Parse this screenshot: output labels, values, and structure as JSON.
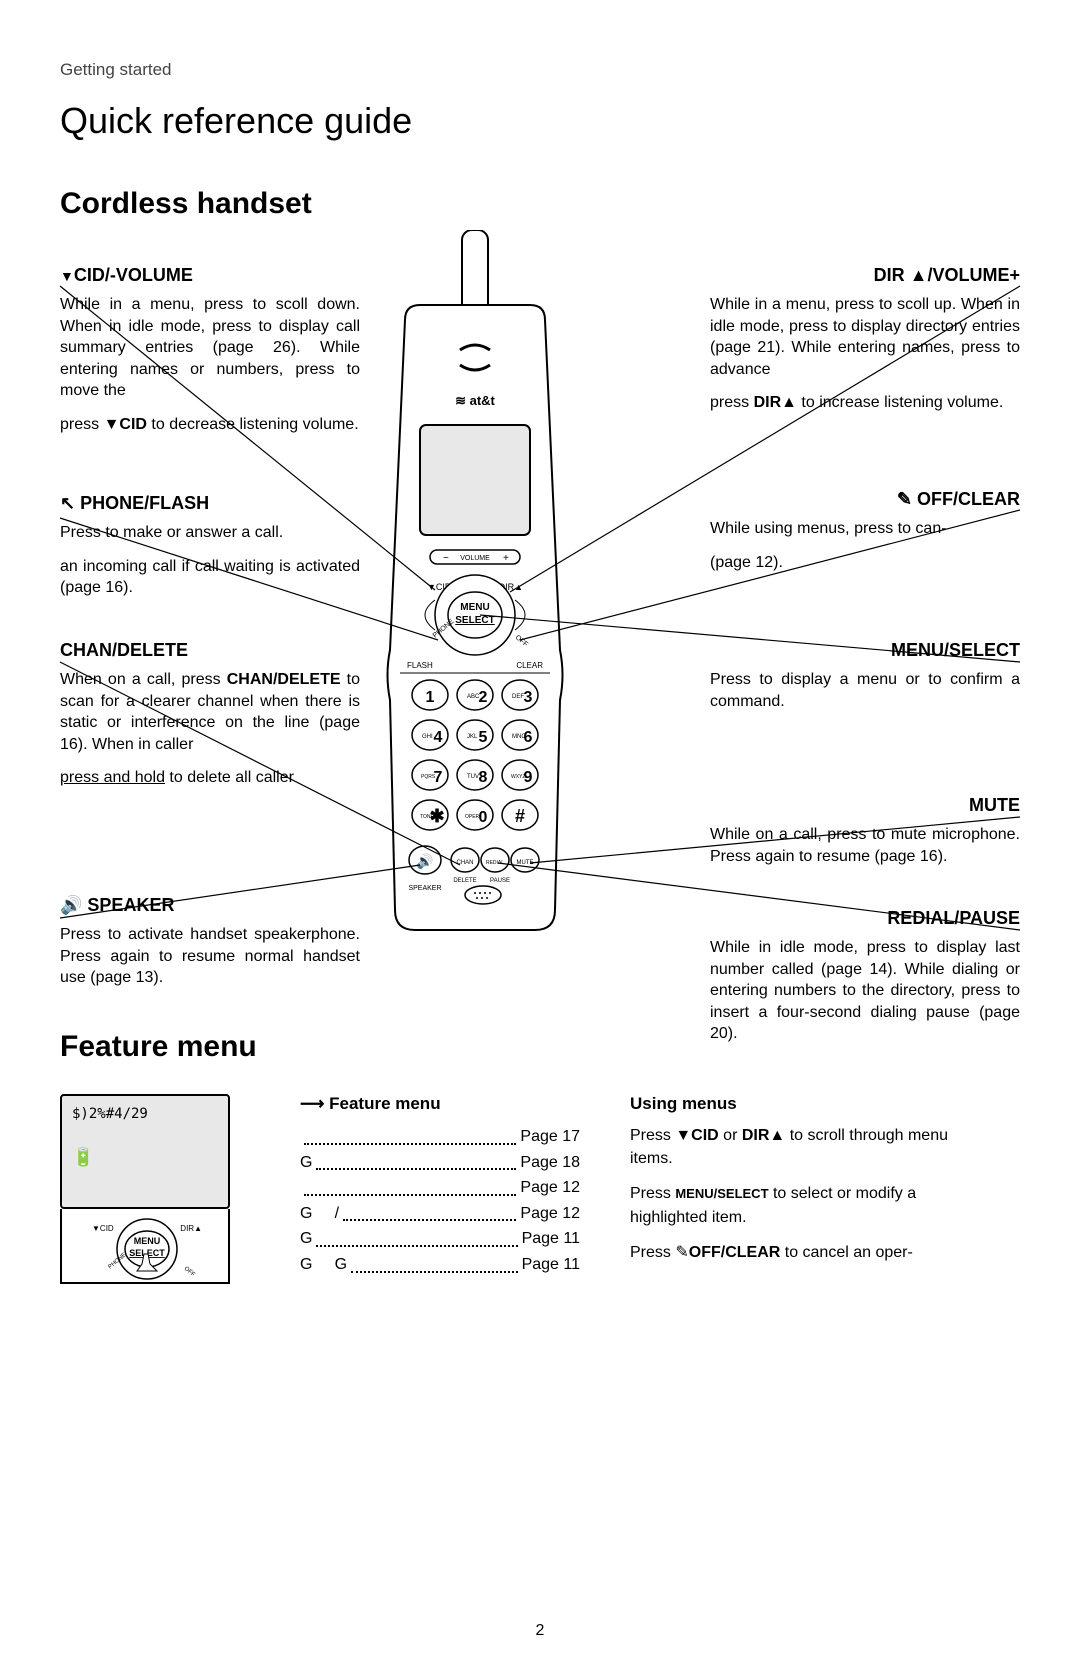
{
  "header": {
    "section_label": "Getting started",
    "page_title": "Quick reference guide",
    "handset_heading": "Cordless handset"
  },
  "left_callouts": {
    "cid": {
      "title_prefix": "▼",
      "title": "CID/-VOLUME",
      "body1": "While in a menu, press to scoll down. When in idle mode, press to display call summary entries (page 26). While entering names or numbers, press to move the",
      "body2_prefix": "press ",
      "body2_strong": "▼CID",
      "body2_suffix": " to decrease listening volume."
    },
    "phone_flash": {
      "title": "PHONE/FLASH",
      "body1": "Press to make or answer a call.",
      "body2": "an incoming call if call waiting is activated (page 16)."
    },
    "chan_delete": {
      "title": "CHAN/DELETE",
      "body1_prefix": "When on a call, press ",
      "body1_strong": "CHAN/DELETE",
      "body1_suffix": " to scan for a clearer channel when there is static or interference on the line (page 16). When in caller",
      "body2": "press and hold",
      "body2_suffix": " to delete all caller"
    },
    "speaker": {
      "title": "SPEAKER",
      "body": "Press to activate handset speakerphone. Press again to resume normal handset use (page 13)."
    }
  },
  "right_callouts": {
    "dir": {
      "title": "DIR ▲/VOLUME+",
      "body1": "While in a menu, press to scoll up. When in idle mode, press to display directory entries (page 21). While entering names, press to advance",
      "body2_prefix": "press ",
      "body2_strong": "DIR▲",
      "body2_suffix": " to increase listening volume."
    },
    "off_clear": {
      "title": "OFF/CLEAR",
      "body1": "While using menus, press to can-",
      "body2": "(page 12)."
    },
    "menu_select": {
      "title": "MENU/SELECT",
      "body": "Press to display a menu or to confirm a command."
    },
    "mute": {
      "title": "MUTE",
      "body": "While on a call, press to mute microphone. Press again to resume (page 16)."
    },
    "redial": {
      "title": "REDIAL/PAUSE",
      "body": "While in idle mode, press to display last number called (page 14). While dialing or entering numbers to the directory, press to insert a four-second dialing pause (page 20)."
    }
  },
  "feature_menu": {
    "heading": "Feature menu",
    "list_title": "Feature menu",
    "screen_text": "$)2%#4/29",
    "items": [
      {
        "label": "",
        "page": "Page 17"
      },
      {
        "label": "G",
        "page": "Page 18"
      },
      {
        "label": "",
        "page": "Page 12"
      },
      {
        "label": "G     /",
        "page": "Page 12"
      },
      {
        "label": "G",
        "page": "Page 11"
      },
      {
        "label": "G     G",
        "page": "Page 11"
      }
    ],
    "using": {
      "title": "Using menus",
      "p1_prefix": "Press ",
      "p1_mid1": "▼CID",
      "p1_mid2": " or ",
      "p1_mid3": "DIR▲",
      "p1_suffix": " to scroll through menu items.",
      "p2_prefix": "Press ",
      "p2_strong": "MENU/SELECT",
      "p2_suffix": " to select or modify a highlighted item.",
      "p3_prefix": "Press ",
      "p3_strong": "OFF/CLEAR",
      "p3_suffix": " to cancel an oper-"
    }
  },
  "phone_labels": {
    "brand": "at&t",
    "volume": "VOLUME",
    "cid": "▼CID",
    "dir": "DIR▲",
    "menu": "MENU",
    "select": "SELECT",
    "flash": "FLASH",
    "clear": "CLEAR",
    "phone": "PHONE",
    "off": "OFF",
    "speaker": "SPEAKER",
    "delete": "DELETE",
    "pause": "PAUSE",
    "chan": "CHAN",
    "redial": "REDIAL",
    "mute": "MUTE",
    "tone": "TONE",
    "oper": "OPER",
    "keys": {
      "abc": "ABC",
      "def": "DEF",
      "ghi": "GHI",
      "jkl": "JKL",
      "mno": "MNO",
      "pqrs": "PQRS",
      "tuv": "TUV",
      "wxyz": "WXYZ"
    }
  },
  "page_number": "2"
}
